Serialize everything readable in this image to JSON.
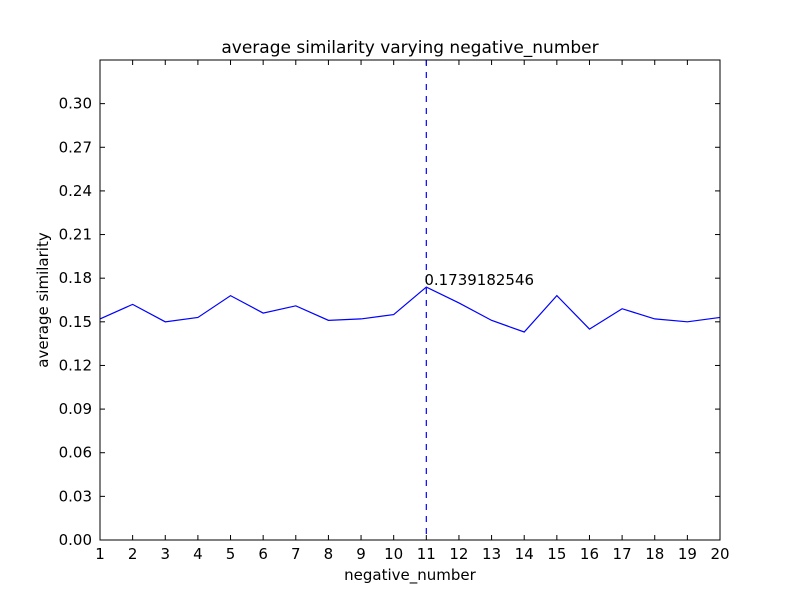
{
  "chart_data": {
    "type": "line",
    "title": "average similarity varying negative_number",
    "xlabel": "negative_number",
    "ylabel": "average similarity",
    "xlim": [
      1,
      20
    ],
    "ylim": [
      0,
      0.33
    ],
    "xticks": [
      "1",
      "2",
      "3",
      "4",
      "5",
      "6",
      "7",
      "8",
      "9",
      "10",
      "11",
      "12",
      "13",
      "14",
      "15",
      "16",
      "17",
      "18",
      "19",
      "20"
    ],
    "yticks": [
      "0.00",
      "0.03",
      "0.06",
      "0.09",
      "0.12",
      "0.15",
      "0.18",
      "0.21",
      "0.24",
      "0.27",
      "0.30"
    ],
    "ytick_values": [
      0,
      0.03,
      0.06,
      0.09,
      0.12,
      0.15,
      0.18,
      0.21,
      0.24,
      0.27,
      0.3
    ],
    "grid": false,
    "series": [
      {
        "color": "#0000ff",
        "x": [
          1,
          2,
          3,
          4,
          5,
          6,
          7,
          8,
          9,
          10,
          11,
          12,
          13,
          14,
          15,
          16,
          17,
          18,
          19,
          20
        ],
        "y": [
          0.152,
          0.162,
          0.15,
          0.153,
          0.168,
          0.156,
          0.161,
          0.151,
          0.152,
          0.155,
          0.1739,
          0.163,
          0.151,
          0.143,
          0.168,
          0.145,
          0.159,
          0.152,
          0.15,
          0.153
        ]
      }
    ],
    "vline": {
      "x": 11,
      "color": "#0000ff",
      "style": "dashed"
    },
    "annotation": {
      "x": 11,
      "y": 0.1739182546,
      "text": "0.1739182546"
    }
  }
}
